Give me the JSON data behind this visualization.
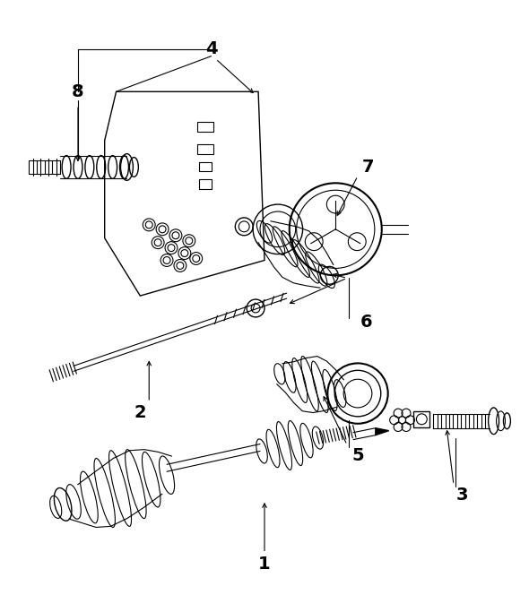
{
  "background_color": "#ffffff",
  "line_color": "#000000",
  "fig_width": 5.9,
  "fig_height": 6.83,
  "dpi": 100
}
